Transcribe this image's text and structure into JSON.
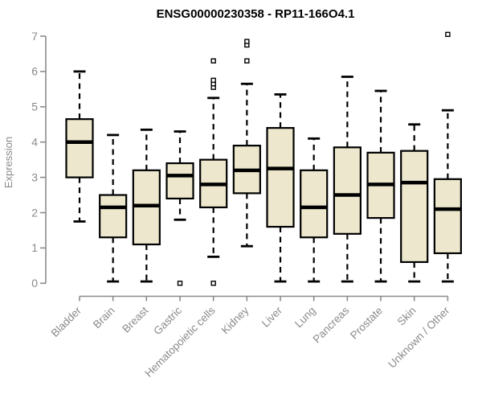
{
  "chart": {
    "title": "ENSG00000230358 - RP11-166O4.1",
    "ylabel": "Expression"
  },
  "colors": {
    "box_fill": "#EDE8CD",
    "box_border": "#000000",
    "median": "#000000",
    "whisker": "#000000",
    "outlier_fill": "#FFFFFF",
    "axis": "#8C8C8C",
    "tick_label": "#8A8A8A",
    "title": "#000000"
  },
  "chart_data": {
    "type": "boxplot",
    "title": "ENSG00000230358 - RP11-166O4.1",
    "xlabel": "",
    "ylabel": "Expression",
    "ylim": [
      0,
      7
    ],
    "yticks": [
      0,
      1,
      2,
      3,
      4,
      5,
      6,
      7
    ],
    "grid": false,
    "legend": false,
    "categories": [
      "Bladder",
      "Brain",
      "Breast",
      "Gastric",
      "Hematopoietic cells",
      "Kidney",
      "Liver",
      "Lung",
      "Pancreas",
      "Prostate",
      "Skin",
      "Unknown / Other"
    ],
    "series": [
      {
        "name": "Bladder",
        "whisker_low": 1.75,
        "q1": 3.0,
        "median": 4.0,
        "q3": 4.65,
        "whisker_high": 6.0,
        "outliers": []
      },
      {
        "name": "Brain",
        "whisker_low": 0.05,
        "q1": 1.3,
        "median": 2.15,
        "q3": 2.5,
        "whisker_high": 4.2,
        "outliers": []
      },
      {
        "name": "Breast",
        "whisker_low": 0.05,
        "q1": 1.1,
        "median": 2.2,
        "q3": 3.2,
        "whisker_high": 4.35,
        "outliers": []
      },
      {
        "name": "Gastric",
        "whisker_low": 1.8,
        "q1": 2.4,
        "median": 3.05,
        "q3": 3.4,
        "whisker_high": 4.3,
        "outliers": [
          0.0
        ]
      },
      {
        "name": "Hematopoietic cells",
        "whisker_low": 0.75,
        "q1": 2.15,
        "median": 2.8,
        "q3": 3.5,
        "whisker_high": 5.25,
        "outliers": [
          0.0,
          5.55,
          5.65,
          5.75,
          6.3
        ]
      },
      {
        "name": "Kidney",
        "whisker_low": 1.05,
        "q1": 2.55,
        "median": 3.2,
        "q3": 3.9,
        "whisker_high": 5.65,
        "outliers": [
          6.3,
          6.75,
          6.85
        ]
      },
      {
        "name": "Liver",
        "whisker_low": 0.05,
        "q1": 1.6,
        "median": 3.25,
        "q3": 4.4,
        "whisker_high": 5.35,
        "outliers": []
      },
      {
        "name": "Lung",
        "whisker_low": 0.05,
        "q1": 1.3,
        "median": 2.15,
        "q3": 3.2,
        "whisker_high": 4.1,
        "outliers": []
      },
      {
        "name": "Pancreas",
        "whisker_low": 0.05,
        "q1": 1.4,
        "median": 2.5,
        "q3": 3.85,
        "whisker_high": 5.85,
        "outliers": []
      },
      {
        "name": "Prostate",
        "whisker_low": 0.05,
        "q1": 1.85,
        "median": 2.8,
        "q3": 3.7,
        "whisker_high": 5.45,
        "outliers": []
      },
      {
        "name": "Skin",
        "whisker_low": 0.05,
        "q1": 0.6,
        "median": 2.85,
        "q3": 3.75,
        "whisker_high": 4.5,
        "outliers": []
      },
      {
        "name": "Unknown / Other",
        "whisker_low": 0.05,
        "q1": 0.85,
        "median": 2.1,
        "q3": 2.95,
        "whisker_high": 4.9,
        "outliers": [
          7.05
        ]
      }
    ]
  }
}
